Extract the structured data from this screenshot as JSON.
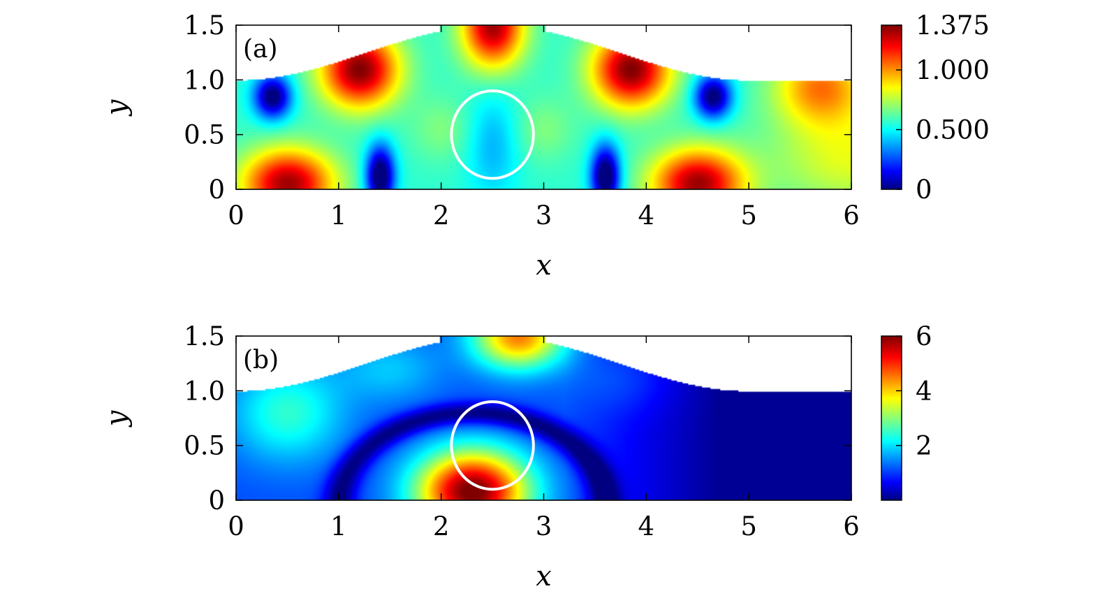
{
  "chart_data": [
    {
      "type": "heatmap",
      "panel_label": "(a)",
      "xlabel": "x",
      "ylabel": "y",
      "xlim": [
        0,
        6
      ],
      "ylim": [
        0,
        1.5
      ],
      "xticks": [
        "0",
        "1",
        "2",
        "3",
        "4",
        "5",
        "6"
      ],
      "yticks": [
        "0",
        "0.5",
        "1.0",
        "1.5"
      ],
      "ytick_values": [
        0,
        0.5,
        1.0,
        1.5
      ],
      "colorbar": {
        "min": 0,
        "max": 1.375,
        "ticks": [
          0,
          0.5,
          1.0,
          1.375
        ],
        "tick_labels": [
          "0",
          "0.500",
          "1.000",
          "1.375"
        ],
        "colormap": "jet"
      },
      "domain": {
        "top_boundary": "y = 1.0 at x=0, rising to 1.5 near x=2.2–2.8, back to 1.0 at x≥5",
        "bottom": 0
      },
      "obstacle_circle": {
        "cx": 2.5,
        "cy": 0.5,
        "r": 0.4,
        "color": "#ffffff"
      },
      "field_extrema": [
        {
          "x": 0.5,
          "y": 0.1,
          "value": 1.3,
          "kind": "high"
        },
        {
          "x": 1.2,
          "y": 1.05,
          "value": 1.375,
          "kind": "high"
        },
        {
          "x": 2.5,
          "y": 1.45,
          "value": 1.3,
          "kind": "high"
        },
        {
          "x": 3.85,
          "y": 1.05,
          "value": 1.375,
          "kind": "high"
        },
        {
          "x": 4.5,
          "y": 0.1,
          "value": 1.3,
          "kind": "high"
        },
        {
          "x": 5.7,
          "y": 0.95,
          "value": 1.0,
          "kind": "high"
        },
        {
          "x": 0.35,
          "y": 0.85,
          "value": 0.05,
          "kind": "low"
        },
        {
          "x": 1.4,
          "y": 0.15,
          "value": 0.0,
          "kind": "low"
        },
        {
          "x": 3.6,
          "y": 0.15,
          "value": 0.0,
          "kind": "low"
        },
        {
          "x": 4.65,
          "y": 0.85,
          "value": 0.05,
          "kind": "low"
        }
      ]
    },
    {
      "type": "heatmap",
      "panel_label": "(b)",
      "xlabel": "x",
      "ylabel": "y",
      "xlim": [
        0,
        6
      ],
      "ylim": [
        0,
        1.5
      ],
      "xticks": [
        "0",
        "1",
        "2",
        "3",
        "4",
        "5",
        "6"
      ],
      "yticks": [
        "0",
        "0.5",
        "1.0",
        "1.5"
      ],
      "ytick_values": [
        0,
        0.5,
        1.0,
        1.5
      ],
      "colorbar": {
        "min": 0,
        "max": 6,
        "ticks": [
          2,
          4,
          6
        ],
        "tick_labels": [
          "2",
          "4",
          "6"
        ],
        "colormap": "jet"
      },
      "domain": {
        "top_boundary": "y = 1.0 at x=0, rising to 1.5 near x=2.2–2.8, back to 1.0 at x≥5",
        "bottom": 0
      },
      "obstacle_circle": {
        "cx": 2.5,
        "cy": 0.5,
        "r": 0.4,
        "color": "#ffffff"
      },
      "field_extrema": [
        {
          "x": 2.3,
          "y": 0.08,
          "value": 6.0,
          "kind": "high"
        },
        {
          "x": 2.7,
          "y": 1.45,
          "value": 4.5,
          "kind": "high"
        },
        {
          "x": 0.5,
          "y": 0.8,
          "value": 2.3,
          "kind": "high"
        },
        {
          "x": 1.0,
          "y": 0.3,
          "value": 0.0,
          "kind": "low"
        },
        {
          "x": 2.4,
          "y": 0.7,
          "value": 0.0,
          "kind": "low"
        },
        {
          "x": 5.5,
          "y": 0.5,
          "value": 0.0,
          "kind": "low"
        }
      ]
    }
  ]
}
